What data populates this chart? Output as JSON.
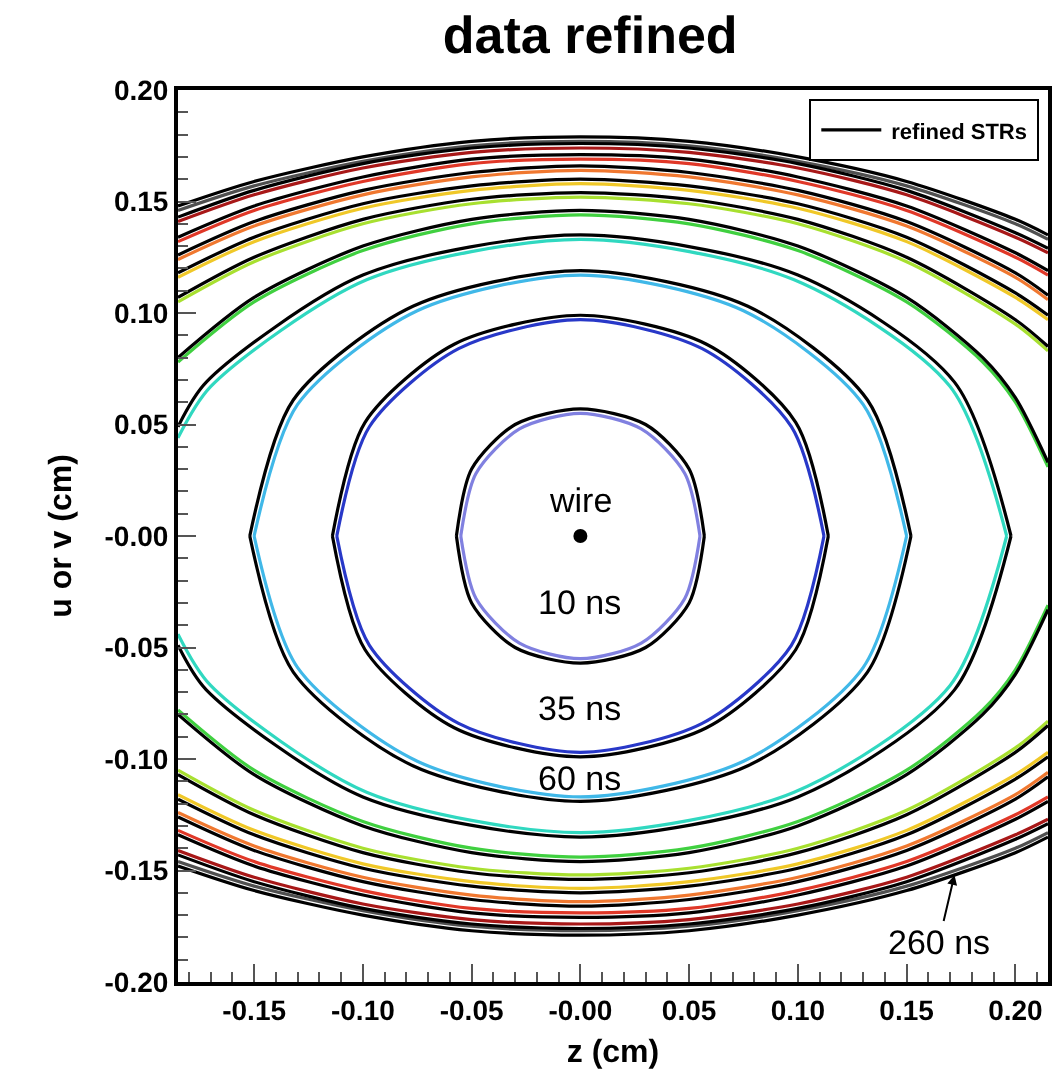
{
  "chart_data": {
    "type": "line",
    "title": "data refined",
    "xlabel": "z (cm)",
    "ylabel": "u or v (cm)",
    "xlim": [
      -0.185,
      0.215
    ],
    "ylim": [
      -0.2,
      0.2
    ],
    "xticks": [
      {
        "value": -0.15,
        "label": "-0.15"
      },
      {
        "value": -0.1,
        "label": "-0.10"
      },
      {
        "value": -0.05,
        "label": "-0.05"
      },
      {
        "value": 0,
        "label": "-0.00"
      },
      {
        "value": 0.05,
        "label": "0.05"
      },
      {
        "value": 0.1,
        "label": "0.10"
      },
      {
        "value": 0.15,
        "label": "0.15"
      },
      {
        "value": 0.2,
        "label": "0.20"
      }
    ],
    "yticks": [
      {
        "value": -0.2,
        "label": "-0.20"
      },
      {
        "value": -0.15,
        "label": "-0.15"
      },
      {
        "value": -0.1,
        "label": "-0.10"
      },
      {
        "value": -0.05,
        "label": "-0.05"
      },
      {
        "value": 0,
        "label": "-0.00"
      },
      {
        "value": 0.05,
        "label": "0.05"
      },
      {
        "value": 0.1,
        "label": "0.10"
      },
      {
        "value": 0.15,
        "label": "0.15"
      },
      {
        "value": 0.2,
        "label": "0.20"
      }
    ],
    "grid": false,
    "legend": "top right",
    "marker": "none",
    "line_style": "solid",
    "annotations": [
      "wire",
      "10 ns",
      "35 ns",
      "60 ns",
      {
        "text": "260 ns",
        "x": 0.172,
        "y": -0.152
      }
    ],
    "series": [
      {
        "color": "#8080e0",
        "x": [
          -0.055,
          -0.048,
          -0.028,
          0,
          0.028,
          0.048,
          0.055,
          null,
          -0.055,
          -0.048,
          -0.028,
          0,
          0.028,
          0.048,
          0.055
        ],
        "values": [
          0,
          0.028,
          0.048,
          0.055,
          0.048,
          0.028,
          0,
          null,
          0,
          -0.028,
          -0.048,
          -0.055,
          -0.048,
          -0.028,
          0
        ]
      },
      {
        "color": "#2838c8",
        "x": [
          -0.112,
          -0.097,
          -0.056,
          0,
          0.056,
          0.097,
          0.112,
          null,
          -0.112,
          -0.097,
          -0.056,
          0,
          0.056,
          0.097,
          0.112
        ],
        "values": [
          0,
          0.049,
          0.084,
          0.097,
          0.084,
          0.049,
          0,
          null,
          0,
          -0.049,
          -0.084,
          -0.097,
          -0.084,
          -0.049,
          0
        ]
      },
      {
        "color": "#40b8e8",
        "x": [
          -0.15,
          -0.13,
          -0.075,
          0,
          0.075,
          0.13,
          0.15,
          null,
          -0.15,
          -0.13,
          -0.075,
          0,
          0.075,
          0.13,
          0.15
        ],
        "values": [
          0,
          0.059,
          0.101,
          0.117,
          0.101,
          0.059,
          0,
          null,
          0,
          -0.059,
          -0.101,
          -0.117,
          -0.101,
          -0.059,
          0
        ]
      },
      {
        "color": "#30d8c0",
        "x": [
          -0.185,
          -0.17,
          -0.098,
          0,
          0.098,
          0.17,
          0.196,
          null,
          -0.185,
          -0.17,
          -0.098,
          0,
          0.098,
          0.17,
          0.196
        ],
        "values": [
          0.044,
          0.067,
          0.115,
          0.133,
          0.115,
          0.067,
          0,
          null,
          -0.044,
          -0.067,
          -0.115,
          -0.133,
          -0.115,
          -0.067,
          0
        ]
      },
      {
        "color": "#40d040",
        "x": [
          -0.185,
          -0.15,
          -0.1,
          -0.05,
          0,
          0.05,
          0.1,
          0.15,
          0.185,
          0.2,
          0.215,
          null,
          -0.185,
          -0.15,
          -0.1,
          -0.05,
          0,
          0.05,
          0.1,
          0.15,
          0.185,
          0.2,
          0.215
        ],
        "values": [
          0.078,
          0.105,
          0.128,
          0.14,
          0.144,
          0.14,
          0.128,
          0.105,
          0.078,
          0.06,
          0.031,
          null,
          -0.078,
          -0.105,
          -0.128,
          -0.14,
          -0.144,
          -0.14,
          -0.128,
          -0.105,
          -0.078,
          -0.06,
          -0.031
        ]
      },
      {
        "color": "#a8e030",
        "x": [
          -0.185,
          -0.15,
          -0.1,
          -0.05,
          0,
          0.05,
          0.1,
          0.15,
          0.2,
          0.215,
          null,
          -0.185,
          -0.15,
          -0.1,
          -0.05,
          0,
          0.05,
          0.1,
          0.15,
          0.2,
          0.215
        ],
        "values": [
          0.105,
          0.123,
          0.14,
          0.149,
          0.152,
          0.149,
          0.14,
          0.123,
          0.095,
          0.083,
          null,
          -0.105,
          -0.123,
          -0.14,
          -0.149,
          -0.152,
          -0.149,
          -0.14,
          -0.123,
          -0.095,
          -0.083
        ]
      },
      {
        "color": "#f0c828",
        "x": [
          -0.185,
          -0.15,
          -0.1,
          -0.05,
          0,
          0.05,
          0.1,
          0.15,
          0.2,
          0.215,
          null,
          -0.185,
          -0.15,
          -0.1,
          -0.05,
          0,
          0.05,
          0.1,
          0.15,
          0.2,
          0.215
        ],
        "values": [
          0.116,
          0.132,
          0.147,
          0.155,
          0.158,
          0.155,
          0.147,
          0.132,
          0.107,
          0.097,
          null,
          -0.116,
          -0.132,
          -0.147,
          -0.155,
          -0.158,
          -0.155,
          -0.147,
          -0.132,
          -0.107,
          -0.097
        ]
      },
      {
        "color": "#f07830",
        "x": [
          -0.185,
          -0.15,
          -0.1,
          -0.05,
          0,
          0.05,
          0.1,
          0.15,
          0.2,
          0.215,
          null,
          -0.185,
          -0.15,
          -0.1,
          -0.05,
          0,
          0.05,
          0.1,
          0.15,
          0.2,
          0.215
        ],
        "values": [
          0.124,
          0.139,
          0.153,
          0.161,
          0.164,
          0.161,
          0.153,
          0.139,
          0.116,
          0.106,
          null,
          -0.124,
          -0.139,
          -0.153,
          -0.161,
          -0.164,
          -0.161,
          -0.153,
          -0.139,
          -0.116,
          -0.106
        ]
      },
      {
        "color": "#e03828",
        "x": [
          -0.185,
          -0.15,
          -0.1,
          -0.05,
          0,
          0.05,
          0.1,
          0.15,
          0.2,
          0.215,
          null,
          -0.185,
          -0.15,
          -0.1,
          -0.05,
          0,
          0.05,
          0.1,
          0.15,
          0.2,
          0.215
        ],
        "values": [
          0.132,
          0.146,
          0.159,
          0.167,
          0.169,
          0.167,
          0.159,
          0.146,
          0.125,
          0.117,
          null,
          -0.132,
          -0.146,
          -0.159,
          -0.167,
          -0.169,
          -0.167,
          -0.159,
          -0.146,
          -0.125,
          -0.117
        ]
      },
      {
        "color": "#a81818",
        "x": [
          -0.185,
          -0.15,
          -0.1,
          -0.05,
          0,
          0.05,
          0.1,
          0.15,
          0.2,
          0.215,
          null,
          -0.185,
          -0.15,
          -0.1,
          -0.05,
          0,
          0.05,
          0.1,
          0.15,
          0.2,
          0.215
        ],
        "values": [
          0.141,
          0.153,
          0.165,
          0.172,
          0.174,
          0.172,
          0.165,
          0.153,
          0.134,
          0.127,
          null,
          -0.141,
          -0.153,
          -0.165,
          -0.172,
          -0.174,
          -0.172,
          -0.165,
          -0.153,
          -0.134,
          -0.127
        ]
      },
      {
        "color": "#505050",
        "x": [
          -0.185,
          -0.15,
          -0.1,
          -0.05,
          0,
          0.05,
          0.1,
          0.15,
          0.2,
          0.215,
          null,
          -0.185,
          -0.15,
          -0.1,
          -0.05,
          0,
          0.05,
          0.1,
          0.15,
          0.2,
          0.215
        ],
        "values": [
          0.146,
          0.157,
          0.168,
          0.175,
          0.177,
          0.175,
          0.168,
          0.157,
          0.14,
          0.133,
          null,
          -0.146,
          -0.157,
          -0.168,
          -0.175,
          -0.177,
          -0.175,
          -0.168,
          -0.157,
          -0.14,
          -0.133
        ]
      },
      {
        "name": "refined STRs",
        "color": "#000000",
        "x": [
          -0.057,
          -0.05,
          -0.03,
          0,
          0.03,
          0.05,
          0.057,
          null,
          -0.057,
          -0.05,
          -0.03,
          0,
          0.03,
          0.05,
          0.057
        ],
        "values": [
          0,
          0.03,
          0.05,
          0.057,
          0.05,
          0.03,
          0,
          null,
          0,
          -0.03,
          -0.05,
          -0.057,
          -0.05,
          -0.03,
          0
        ]
      },
      {
        "color": "#000000",
        "x": [
          -0.114,
          -0.099,
          -0.058,
          0,
          0.058,
          0.099,
          0.114,
          null,
          -0.114,
          -0.099,
          -0.058,
          0,
          0.058,
          0.099,
          0.114
        ],
        "values": [
          0,
          0.051,
          0.086,
          0.099,
          0.086,
          0.051,
          0,
          null,
          0,
          -0.051,
          -0.086,
          -0.099,
          -0.086,
          -0.051,
          0
        ]
      },
      {
        "color": "#000000",
        "x": [
          -0.152,
          -0.132,
          -0.077,
          0,
          0.077,
          0.132,
          0.152,
          null,
          -0.152,
          -0.132,
          -0.077,
          0,
          0.077,
          0.132,
          0.152
        ],
        "values": [
          0,
          0.061,
          0.103,
          0.119,
          0.103,
          0.061,
          0,
          null,
          0,
          -0.061,
          -0.103,
          -0.119,
          -0.103,
          -0.061,
          0
        ]
      },
      {
        "color": "#000000",
        "x": [
          -0.185,
          -0.172,
          -0.1,
          0,
          0.1,
          0.172,
          0.198,
          null,
          -0.185,
          -0.172,
          -0.1,
          0,
          0.1,
          0.172,
          0.198
        ],
        "values": [
          0.049,
          0.069,
          0.117,
          0.135,
          0.117,
          0.069,
          0,
          null,
          -0.049,
          -0.069,
          -0.117,
          -0.135,
          -0.117,
          -0.069,
          0
        ]
      },
      {
        "color": "#000000",
        "x": [
          -0.185,
          -0.15,
          -0.1,
          -0.05,
          0,
          0.05,
          0.1,
          0.15,
          0.185,
          0.2,
          0.215,
          null,
          -0.185,
          -0.15,
          -0.1,
          -0.05,
          0,
          0.05,
          0.1,
          0.15,
          0.185,
          0.2,
          0.215
        ],
        "values": [
          0.08,
          0.107,
          0.13,
          0.142,
          0.146,
          0.142,
          0.13,
          0.107,
          0.08,
          0.062,
          0.033,
          null,
          -0.08,
          -0.107,
          -0.13,
          -0.142,
          -0.146,
          -0.142,
          -0.13,
          -0.107,
          -0.08,
          -0.062,
          -0.033
        ]
      },
      {
        "color": "#000000",
        "x": [
          -0.185,
          -0.15,
          -0.1,
          -0.05,
          0,
          0.05,
          0.1,
          0.15,
          0.2,
          0.215,
          null,
          -0.185,
          -0.15,
          -0.1,
          -0.05,
          0,
          0.05,
          0.1,
          0.15,
          0.2,
          0.215
        ],
        "values": [
          0.107,
          0.125,
          0.142,
          0.151,
          0.154,
          0.151,
          0.142,
          0.125,
          0.097,
          0.085,
          null,
          -0.107,
          -0.125,
          -0.142,
          -0.151,
          -0.154,
          -0.151,
          -0.142,
          -0.125,
          -0.097,
          -0.085
        ]
      },
      {
        "color": "#000000",
        "x": [
          -0.185,
          -0.15,
          -0.1,
          -0.05,
          0,
          0.05,
          0.1,
          0.15,
          0.2,
          0.215,
          null,
          -0.185,
          -0.15,
          -0.1,
          -0.05,
          0,
          0.05,
          0.1,
          0.15,
          0.2,
          0.215
        ],
        "values": [
          0.118,
          0.134,
          0.149,
          0.157,
          0.16,
          0.157,
          0.149,
          0.134,
          0.109,
          0.099,
          null,
          -0.118,
          -0.134,
          -0.149,
          -0.157,
          -0.16,
          -0.157,
          -0.149,
          -0.134,
          -0.109,
          -0.099
        ]
      },
      {
        "color": "#000000",
        "x": [
          -0.185,
          -0.15,
          -0.1,
          -0.05,
          0,
          0.05,
          0.1,
          0.15,
          0.2,
          0.215,
          null,
          -0.185,
          -0.15,
          -0.1,
          -0.05,
          0,
          0.05,
          0.1,
          0.15,
          0.2,
          0.215
        ],
        "values": [
          0.126,
          0.141,
          0.155,
          0.163,
          0.166,
          0.163,
          0.155,
          0.141,
          0.118,
          0.108,
          null,
          -0.126,
          -0.141,
          -0.155,
          -0.163,
          -0.166,
          -0.163,
          -0.155,
          -0.141,
          -0.118,
          -0.108
        ]
      },
      {
        "color": "#000000",
        "x": [
          -0.185,
          -0.15,
          -0.1,
          -0.05,
          0,
          0.05,
          0.1,
          0.15,
          0.2,
          0.215,
          null,
          -0.185,
          -0.15,
          -0.1,
          -0.05,
          0,
          0.05,
          0.1,
          0.15,
          0.2,
          0.215
        ],
        "values": [
          0.134,
          0.148,
          0.161,
          0.169,
          0.171,
          0.169,
          0.161,
          0.148,
          0.127,
          0.119,
          null,
          -0.134,
          -0.148,
          -0.161,
          -0.169,
          -0.171,
          -0.169,
          -0.161,
          -0.148,
          -0.127,
          -0.119
        ]
      },
      {
        "color": "#000000",
        "x": [
          -0.185,
          -0.15,
          -0.1,
          -0.05,
          0,
          0.05,
          0.1,
          0.15,
          0.2,
          0.215,
          null,
          -0.185,
          -0.15,
          -0.1,
          -0.05,
          0,
          0.05,
          0.1,
          0.15,
          0.2,
          0.215
        ],
        "values": [
          0.143,
          0.155,
          0.167,
          0.174,
          0.176,
          0.174,
          0.167,
          0.155,
          0.136,
          0.129,
          null,
          -0.143,
          -0.155,
          -0.167,
          -0.174,
          -0.176,
          -0.174,
          -0.167,
          -0.155,
          -0.136,
          -0.129
        ]
      },
      {
        "color": "#000000",
        "x": [
          -0.185,
          -0.15,
          -0.1,
          -0.05,
          0,
          0.05,
          0.1,
          0.15,
          0.2,
          0.215,
          null,
          -0.185,
          -0.15,
          -0.1,
          -0.05,
          0,
          0.05,
          0.1,
          0.15,
          0.2,
          0.215
        ],
        "values": [
          0.148,
          0.159,
          0.17,
          0.177,
          0.179,
          0.177,
          0.17,
          0.159,
          0.142,
          0.135,
          null,
          -0.148,
          -0.159,
          -0.17,
          -0.177,
          -0.179,
          -0.177,
          -0.17,
          -0.159,
          -0.142,
          -0.135
        ]
      },
      {
        "type": "scatter",
        "marker": "circle",
        "color": "#000000",
        "x": [
          0
        ],
        "values": [
          0
        ]
      }
    ]
  }
}
